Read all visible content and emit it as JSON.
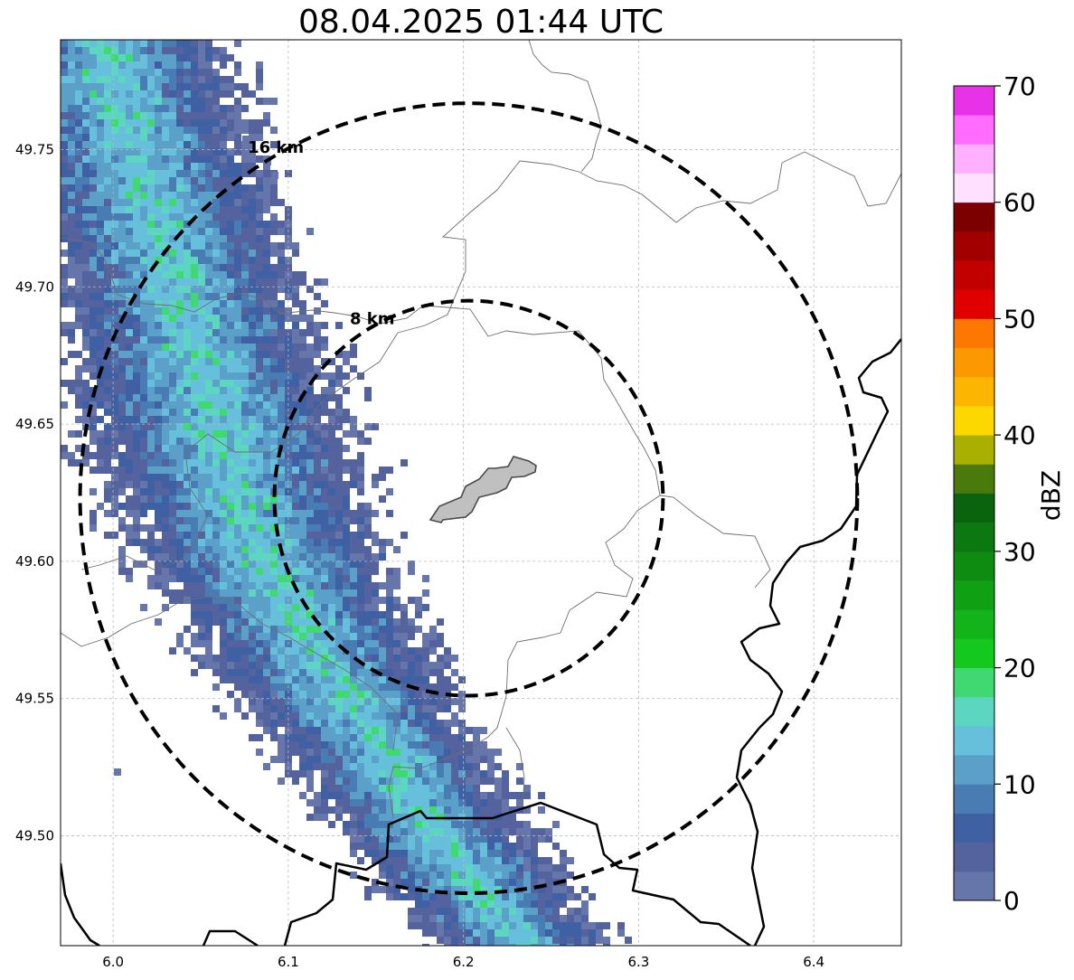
{
  "title": "08.04.2025 01:44 UTC",
  "map": {
    "x_ticks": [
      "6.0",
      "6.1",
      "6.2",
      "6.3",
      "6.4"
    ],
    "y_ticks": [
      "49.75",
      "49.70",
      "49.65",
      "49.60",
      "49.55",
      "49.50"
    ],
    "lon_range": [
      5.97,
      6.45
    ],
    "lat_range": [
      49.46,
      49.79
    ],
    "center": {
      "lon": 6.203,
      "lat": 49.623
    },
    "rings": [
      {
        "label": "8 km",
        "radius_km": 8
      },
      {
        "label": "16 km",
        "radius_km": 16
      }
    ],
    "gridlines": true
  },
  "colorbar": {
    "label": "dBZ",
    "ticks": [
      "0",
      "10",
      "20",
      "30",
      "40",
      "50",
      "60",
      "70"
    ],
    "colors": [
      "#6675aa",
      "#54639e",
      "#4060a4",
      "#4a7cb4",
      "#5ba0c8",
      "#66c0dc",
      "#5cd6c0",
      "#40d870",
      "#14c81e",
      "#12b41a",
      "#10a014",
      "#0e8c12",
      "#0c7810",
      "#0a640e",
      "#4a7a0c",
      "#aab000",
      "#fcd800",
      "#fcb600",
      "#fc9800",
      "#fc7800",
      "#e00000",
      "#c20000",
      "#a20000",
      "#7c0000",
      "#ffe0ff",
      "#ffb0ff",
      "#ff6cff",
      "#e832e8"
    ]
  },
  "colors": {
    "rings": "#000000",
    "borders": "#000000",
    "admin": "#6e6e6e",
    "site": "#c0c0c0"
  }
}
